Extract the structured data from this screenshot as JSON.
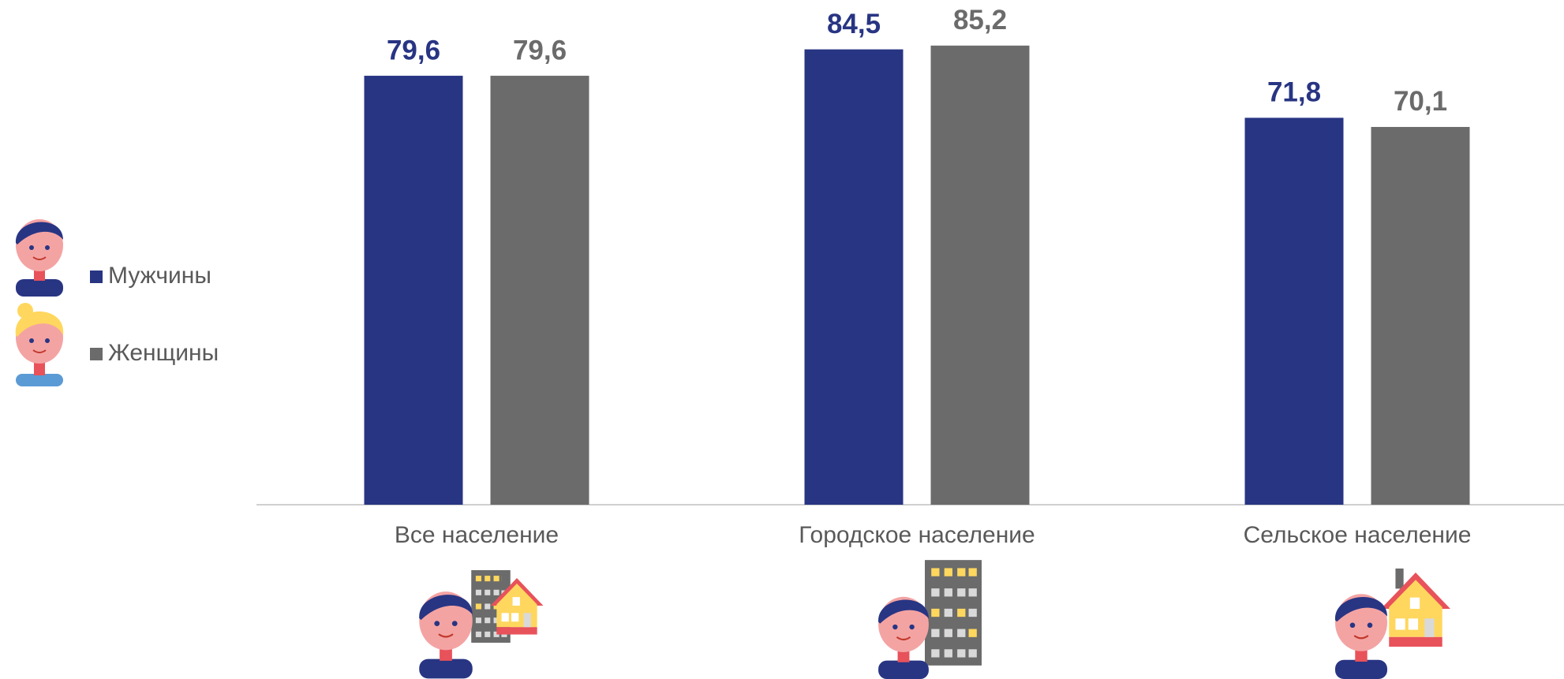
{
  "chart_data": {
    "type": "bar",
    "categories": [
      "Все население",
      "Городское население",
      "Сельское население"
    ],
    "series": [
      {
        "name": "Мужчины",
        "color": "#283583",
        "values": [
          79.6,
          84.5,
          71.8
        ],
        "value_labels": [
          "79,6",
          "84,5",
          "71,8"
        ]
      },
      {
        "name": "Женщины",
        "color": "#6b6b6b",
        "values": [
          79.6,
          85.2,
          70.1
        ],
        "value_labels": [
          "79,6",
          "85,2",
          "70,1"
        ]
      }
    ],
    "ylim": [
      0,
      90
    ]
  }
}
